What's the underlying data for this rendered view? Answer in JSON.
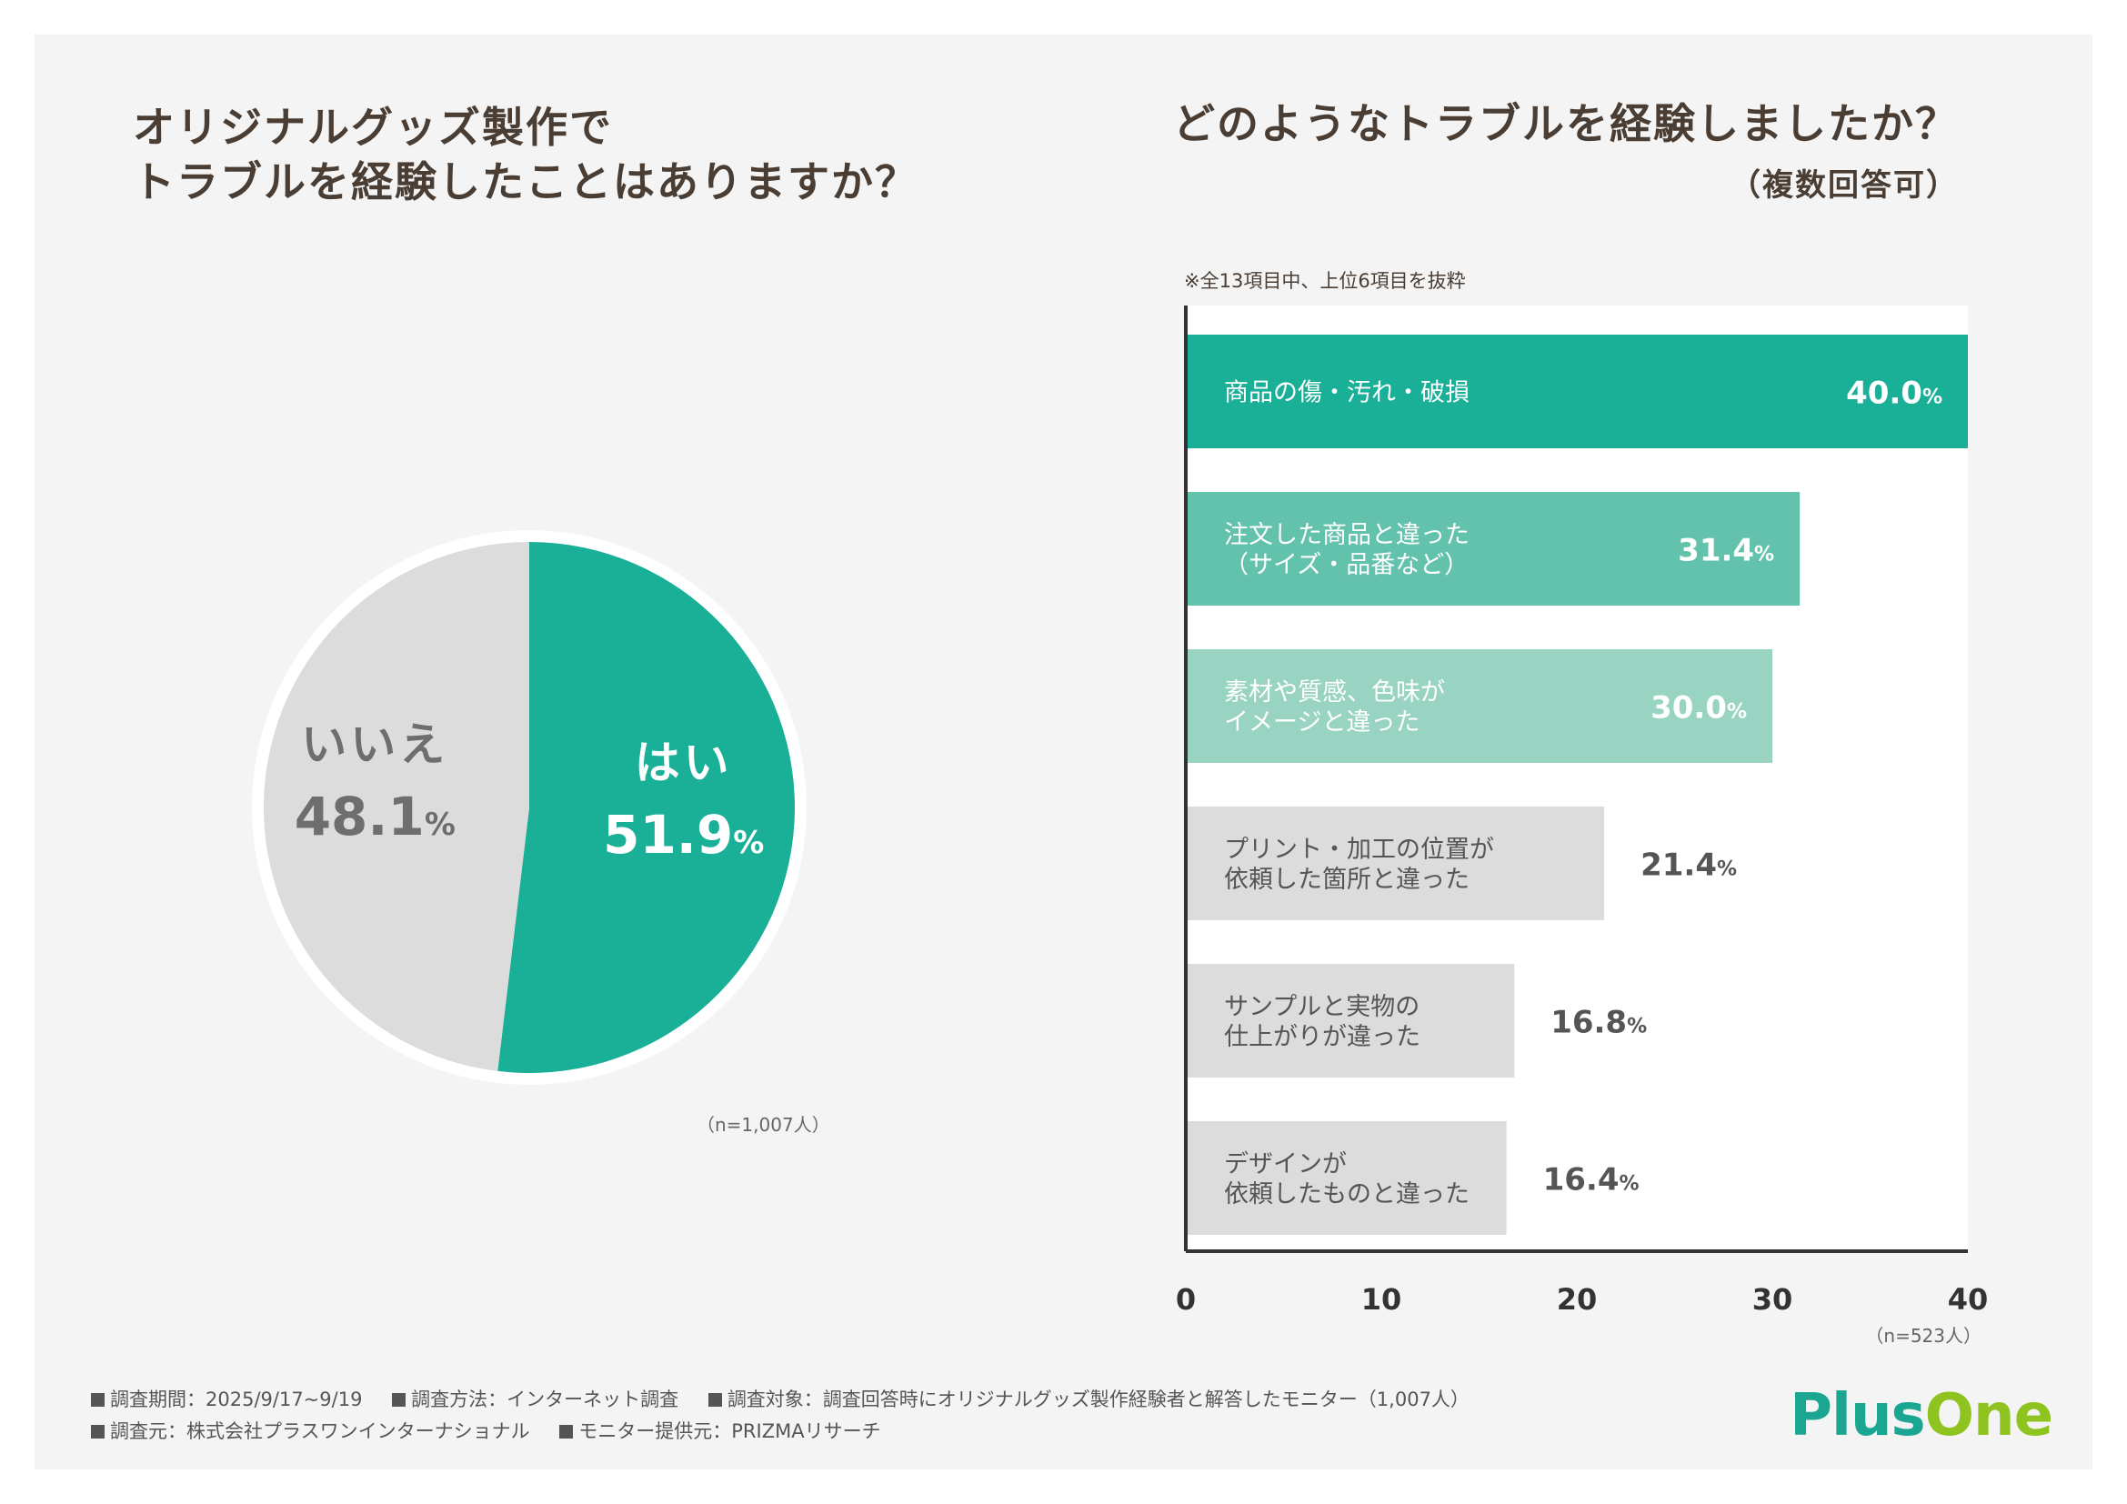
{
  "left_title": "オリジナルグッズ製作で\nトラブルを経験したことはありますか？",
  "right_title": "どのようなトラブルを経験しましたか？",
  "right_subtitle": "（複数回答可）",
  "note": "※全13項目中、上位6項目を抜粋",
  "pie_n": "（n=1,007人）",
  "bar_n": "（n=523人）",
  "colors": {
    "teal": "#1aaf97",
    "teal_mid": "#63c2ac",
    "teal_light": "#99d4c3",
    "gray_bar": "#dcdcdc",
    "pie_gray": "#dcdcdc",
    "text_dark": "#4a3d33",
    "text_gray": "#666666"
  },
  "chart_data": [
    {
      "type": "pie",
      "slices": [
        {
          "label": "はい",
          "value": 51.9,
          "display": "51.9",
          "unit": "%"
        },
        {
          "label": "いいえ",
          "value": 48.1,
          "display": "48.1",
          "unit": "%"
        }
      ]
    },
    {
      "type": "bar",
      "orientation": "horizontal",
      "categories": [
        "商品の傷・汚れ・破損",
        "注文した商品と違った\n（サイズ・品番など）",
        "素材や質感、色味が\nイメージと違った",
        "プリント・加工の位置が\n依頼した箇所と違った",
        "サンプルと実物の\n仕上がりが違った",
        "デザインが\n依頼したものと違った"
      ],
      "values": [
        40.0,
        31.4,
        30.0,
        21.4,
        16.8,
        16.4
      ],
      "display_values": [
        "40.0",
        "31.4",
        "30.0",
        "21.4",
        "16.8",
        "16.4"
      ],
      "unit": "%",
      "xlim": [
        0,
        40
      ],
      "xticks": [
        "0",
        "10",
        "20",
        "30",
        "40"
      ]
    }
  ],
  "footer": {
    "line1": [
      "調査期間：2025/9/17~9/19",
      "調査方法：インターネット調査",
      "調査対象：調査回答時にオリジナルグッズ製作経験者と解答したモニター（1,007人）"
    ],
    "line2": [
      "調査元：株式会社プラスワンインターナショナル",
      "モニター提供元：PRIZMAリサーチ"
    ]
  },
  "logo": {
    "part1": "Plus",
    "part2": "One"
  }
}
